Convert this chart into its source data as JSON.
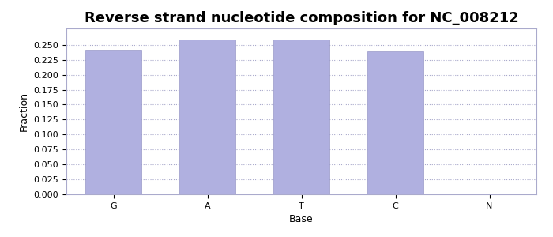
{
  "title": "Reverse strand nucleotide composition for NC_008212",
  "categories": [
    "G",
    "A",
    "T",
    "C",
    "N"
  ],
  "values": [
    0.2415,
    0.2595,
    0.2585,
    0.239,
    0.0
  ],
  "bar_color": "#b0b0e0",
  "bar_edge_color": "#9898c8",
  "xlabel": "Base",
  "ylabel": "Fraction",
  "ylim": [
    0.0,
    0.2775
  ],
  "yticks": [
    0.0,
    0.025,
    0.05,
    0.075,
    0.1,
    0.125,
    0.15,
    0.175,
    0.2,
    0.225,
    0.25
  ],
  "title_fontsize": 13,
  "axis_label_fontsize": 9,
  "tick_fontsize": 8,
  "grid_color": "#aaaacc",
  "background_color": "#ffffff",
  "fig_width": 7.0,
  "fig_height": 3.0
}
